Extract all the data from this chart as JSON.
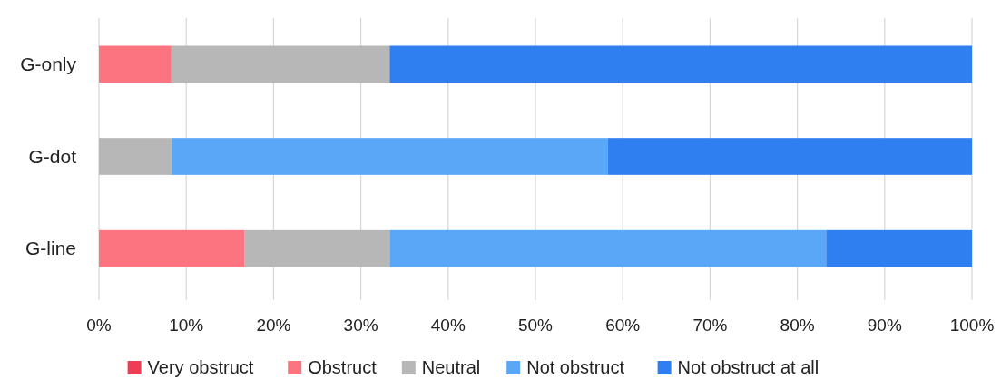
{
  "chart_data": {
    "type": "bar",
    "orientation": "horizontal",
    "stacked": true,
    "categories": [
      "G-only",
      "G-dot",
      "G-line"
    ],
    "series": [
      {
        "name": "Very obstruct",
        "color": "#ef3d55",
        "values": [
          0,
          0,
          0
        ]
      },
      {
        "name": "Obstruct",
        "color": "#fd7481",
        "values": [
          8.3,
          0,
          16.7
        ]
      },
      {
        "name": "Neutral",
        "color": "#b7b7b7",
        "values": [
          25,
          8.3,
          16.6
        ]
      },
      {
        "name": "Not obstruct",
        "color": "#5aa6f7",
        "values": [
          0,
          50,
          50
        ]
      },
      {
        "name": "Not obstruct at all",
        "color": "#2f7ff0",
        "values": [
          66.7,
          41.7,
          16.7
        ]
      }
    ],
    "xlim": [
      0,
      100
    ],
    "xticks": [
      {
        "value": 0,
        "label": "0%"
      },
      {
        "value": 10,
        "label": "10%"
      },
      {
        "value": 20,
        "label": "20%"
      },
      {
        "value": 30,
        "label": "30%"
      },
      {
        "value": 40,
        "label": "40%"
      },
      {
        "value": 50,
        "label": "50%"
      },
      {
        "value": 60,
        "label": "60%"
      },
      {
        "value": 70,
        "label": "70%"
      },
      {
        "value": 80,
        "label": "80%"
      },
      {
        "value": 90,
        "label": "90%"
      },
      {
        "value": 100,
        "label": "100%"
      }
    ],
    "grid": "x",
    "legend": "bottom"
  }
}
